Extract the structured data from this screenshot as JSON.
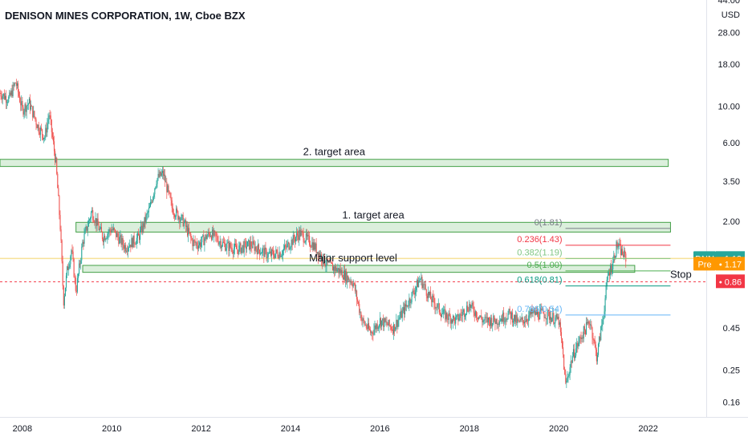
{
  "title": "DENISON MINES CORPORATION, 1W, Cboe BZX",
  "currency": "USD",
  "chart_data": {
    "type": "candlestick",
    "title": "DENISON MINES CORPORATION, 1W, Cboe BZX",
    "y_scale": "log",
    "ylim": [
      0.13,
      44.0
    ],
    "xlim": [
      2007.5,
      2023.3
    ],
    "y_ticks": [
      "44.00",
      "28.00",
      "18.00",
      "10.00",
      "6.00",
      "3.50",
      "2.00",
      "0.45",
      "0.25",
      "0.16"
    ],
    "x_ticks": [
      "2008",
      "2010",
      "2012",
      "2014",
      "2016",
      "2018",
      "2020",
      "2022"
    ],
    "colors": {
      "up": "#26a69a",
      "down": "#ef5350",
      "zone_fill": "#c8e6c9",
      "zone_stroke": "#43a047"
    },
    "price_path": [
      [
        2007.5,
        12.0
      ],
      [
        2007.7,
        11.0
      ],
      [
        2007.85,
        14.0
      ],
      [
        2008.0,
        9.5
      ],
      [
        2008.15,
        10.5
      ],
      [
        2008.35,
        7.5
      ],
      [
        2008.5,
        6.5
      ],
      [
        2008.6,
        9.0
      ],
      [
        2008.75,
        4.5
      ],
      [
        2008.85,
        1.8
      ],
      [
        2008.92,
        0.65
      ],
      [
        2009.0,
        1.0
      ],
      [
        2009.1,
        1.35
      ],
      [
        2009.2,
        0.75
      ],
      [
        2009.35,
        1.5
      ],
      [
        2009.55,
        2.3
      ],
      [
        2009.8,
        1.6
      ],
      [
        2010.0,
        1.8
      ],
      [
        2010.3,
        1.4
      ],
      [
        2010.6,
        1.6
      ],
      [
        2010.85,
        2.4
      ],
      [
        2011.0,
        3.6
      ],
      [
        2011.15,
        3.9
      ],
      [
        2011.35,
        2.4
      ],
      [
        2011.6,
        2.0
      ],
      [
        2011.8,
        1.5
      ],
      [
        2011.95,
        1.45
      ],
      [
        2012.2,
        1.7
      ],
      [
        2012.5,
        1.45
      ],
      [
        2012.8,
        1.35
      ],
      [
        2013.1,
        1.45
      ],
      [
        2013.5,
        1.25
      ],
      [
        2013.8,
        1.3
      ],
      [
        2014.2,
        1.7
      ],
      [
        2014.5,
        1.45
      ],
      [
        2014.8,
        1.1
      ],
      [
        2015.1,
        1.0
      ],
      [
        2015.4,
        0.85
      ],
      [
        2015.6,
        0.5
      ],
      [
        2015.8,
        0.42
      ],
      [
        2016.0,
        0.5
      ],
      [
        2016.3,
        0.45
      ],
      [
        2016.6,
        0.62
      ],
      [
        2016.9,
        0.9
      ],
      [
        2017.1,
        0.7
      ],
      [
        2017.4,
        0.55
      ],
      [
        2017.7,
        0.5
      ],
      [
        2018.0,
        0.62
      ],
      [
        2018.3,
        0.5
      ],
      [
        2018.6,
        0.5
      ],
      [
        2018.9,
        0.55
      ],
      [
        2019.1,
        0.48
      ],
      [
        2019.4,
        0.55
      ],
      [
        2019.7,
        0.55
      ],
      [
        2020.0,
        0.5
      ],
      [
        2020.1,
        0.3
      ],
      [
        2020.15,
        0.2
      ],
      [
        2020.3,
        0.3
      ],
      [
        2020.5,
        0.4
      ],
      [
        2020.7,
        0.5
      ],
      [
        2020.85,
        0.3
      ],
      [
        2021.0,
        0.55
      ],
      [
        2021.1,
        0.95
      ],
      [
        2021.2,
        1.1
      ],
      [
        2021.3,
        1.45
      ],
      [
        2021.4,
        1.3
      ],
      [
        2021.5,
        1.2
      ]
    ],
    "zones": [
      {
        "label": "2. target area",
        "x0": 2007.5,
        "x1": 2022.45,
        "y0": 4.3,
        "y1": 4.75
      },
      {
        "label": "1. target area",
        "x0": 2009.2,
        "x1": 2022.5,
        "y0": 1.72,
        "y1": 1.97
      },
      {
        "label": "Major support level",
        "x0": 2009.35,
        "x1": 2021.7,
        "y0": 0.98,
        "y1": 1.08
      }
    ],
    "fib_levels": [
      {
        "label": "0(1.81)",
        "value": 1.81,
        "color": "#787b86"
      },
      {
        "label": "0.236(1.43)",
        "value": 1.43,
        "color": "#f23645"
      },
      {
        "label": "0.382(1.19)",
        "value": 1.19,
        "color": "#81c784"
      },
      {
        "label": "0.5(1.00)",
        "value": 1.0,
        "color": "#4caf50"
      },
      {
        "label": "0.618(0.81)",
        "value": 0.81,
        "color": "#089981"
      },
      {
        "label": "0.786(0.54)",
        "value": 0.54,
        "color": "#64b5f6"
      }
    ],
    "fib_x": [
      2020.15,
      2022.5
    ],
    "annotations": [
      {
        "text": "Stop",
        "value": 0.95
      }
    ],
    "stop_line": {
      "value": 0.86,
      "color": "#f23645"
    },
    "support_line": {
      "value": 1.19,
      "color": "#f5d76e"
    },
    "badges": [
      {
        "ticker": "DNN",
        "value": "1.19",
        "price": 1.19,
        "color": "#26a69a"
      },
      {
        "ticker": "Pre",
        "value": "1.17",
        "price": 1.1,
        "color": "#ff9800"
      },
      {
        "ticker": "",
        "value": "0.86",
        "price": 0.86,
        "color": "#f23645"
      }
    ]
  }
}
